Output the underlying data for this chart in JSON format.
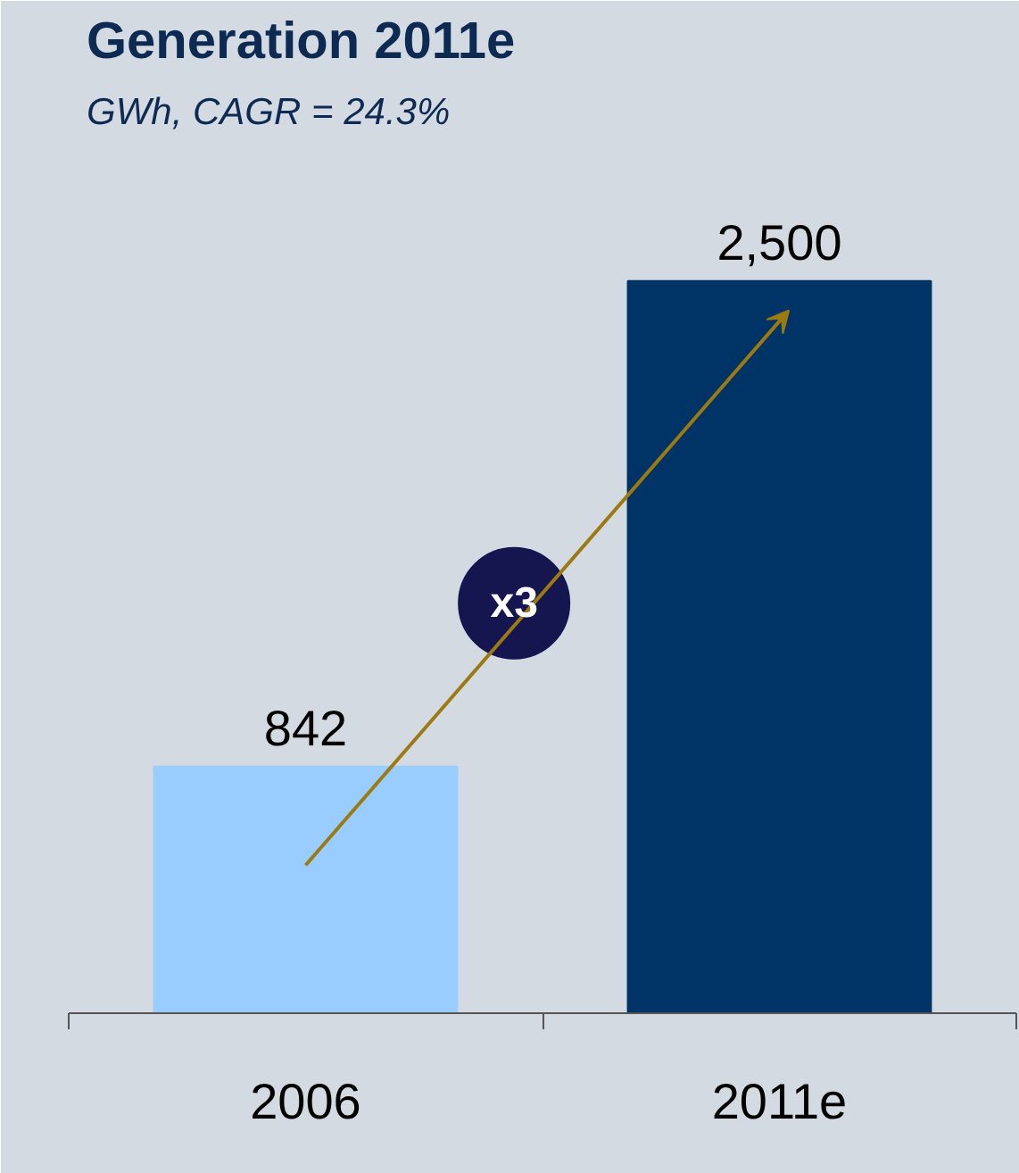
{
  "chart_data": {
    "type": "bar",
    "title": "Generation 2011e",
    "subtitle": "GWh, CAGR = 24.3%",
    "categories": [
      "2006",
      "2011e"
    ],
    "values": [
      842,
      2500
    ],
    "colors": [
      "#99ccff",
      "#003366"
    ],
    "value_labels": [
      "842",
      "2,500"
    ],
    "grid": false,
    "annotations": [
      "x3"
    ]
  }
}
